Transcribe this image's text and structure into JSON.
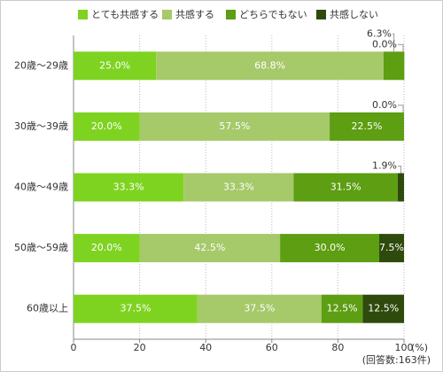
{
  "chart_data": {
    "type": "bar",
    "orientation": "horizontal",
    "stacked": true,
    "categories": [
      "20歳〜29歳",
      "30歳〜39歳",
      "40歳〜49歳",
      "50歳〜59歳",
      "60歳以上"
    ],
    "series": [
      {
        "name": "とても共感する",
        "color": "#7ed321",
        "values": [
          25.0,
          20.0,
          33.3,
          20.0,
          37.5
        ],
        "value_labels": [
          "25.0%",
          "20.0%",
          "33.3%",
          "20.0%",
          "37.5%"
        ]
      },
      {
        "name": "共感する",
        "color": "#a6c96a",
        "values": [
          68.8,
          57.5,
          33.3,
          42.5,
          37.5
        ],
        "value_labels": [
          "68.8%",
          "57.5%",
          "33.3%",
          "42.5%",
          "37.5%"
        ]
      },
      {
        "name": "どちらでもない",
        "color": "#5d9e12",
        "values": [
          6.3,
          22.5,
          31.5,
          30.0,
          12.5
        ],
        "value_labels": [
          "6.3%",
          "22.5%",
          "31.5%",
          "30.0%",
          "12.5%"
        ]
      },
      {
        "name": "共感しない",
        "color": "#2e4a0c",
        "values": [
          0.0,
          0.0,
          1.9,
          7.5,
          12.5
        ],
        "value_labels": [
          "0.0%",
          "0.0%",
          "1.9%",
          "7.5%",
          "12.5%"
        ]
      }
    ],
    "xlim": [
      0,
      100
    ],
    "xticks": [
      0,
      20,
      40,
      60,
      80,
      100
    ],
    "x_unit": "(%)",
    "note": "(回答数:163件)",
    "grid": true,
    "legend": "top"
  }
}
